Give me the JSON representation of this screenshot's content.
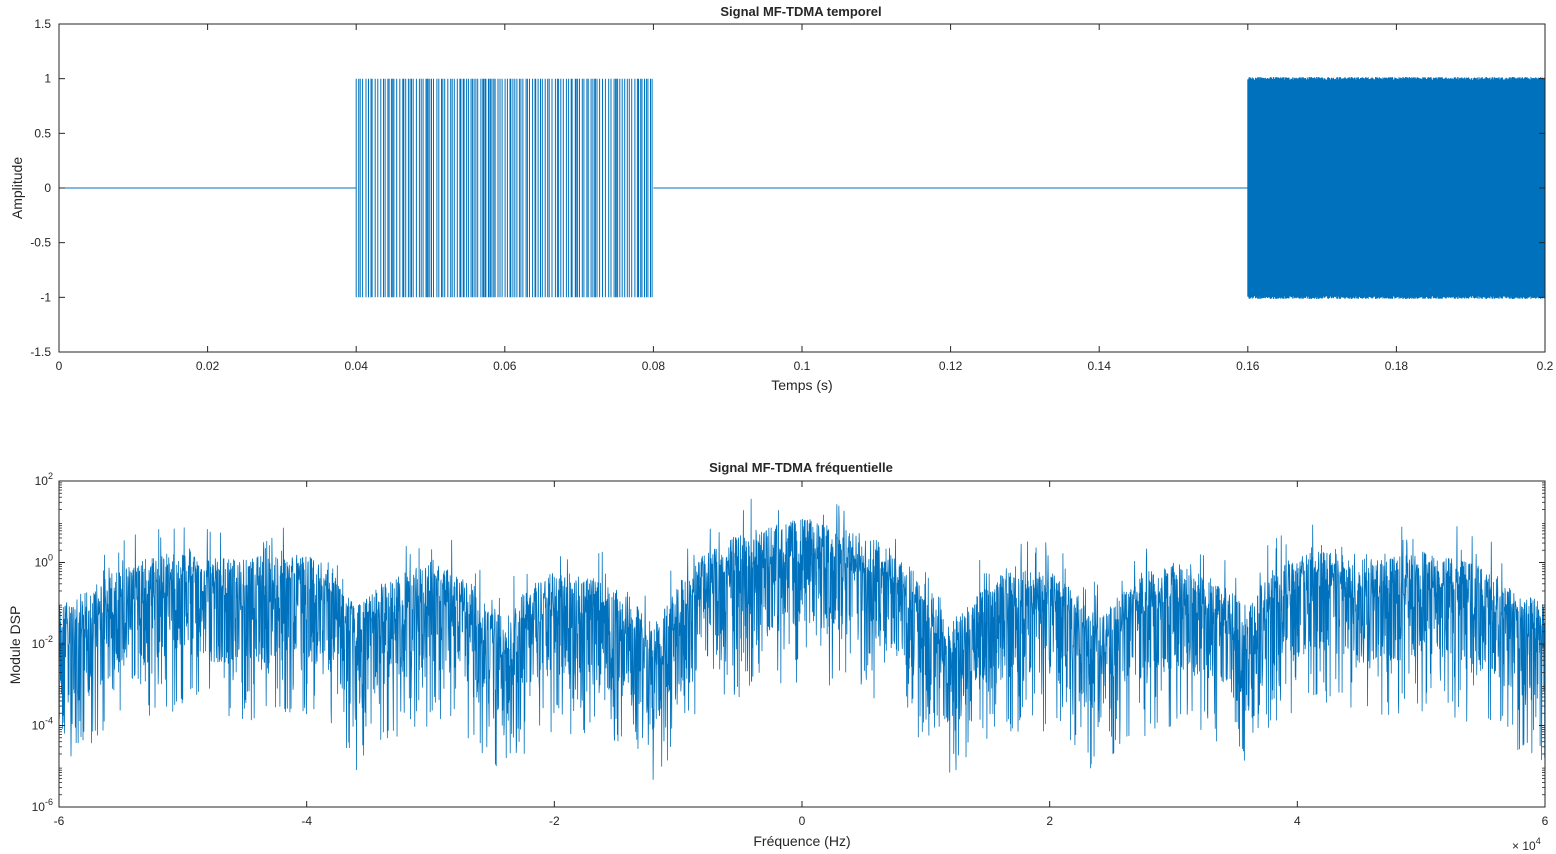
{
  "colors": {
    "series": "#0072BD",
    "axis": "#262626",
    "background": "#ffffff"
  },
  "chart_data": [
    {
      "type": "line",
      "title": "Signal MF-TDMA temporel",
      "xlabel": "Temps (s)",
      "ylabel": "Amplitude",
      "xlim": [
        0,
        0.2
      ],
      "ylim": [
        -1.5,
        1.5
      ],
      "x_ticks": [
        0,
        0.02,
        0.04,
        0.06,
        0.08,
        0.1,
        0.12,
        0.14,
        0.16,
        0.18,
        0.2
      ],
      "x_tick_labels": [
        "0",
        "0.02",
        "0.04",
        "0.06",
        "0.08",
        "0.1",
        "0.12",
        "0.14",
        "0.16",
        "0.18",
        "0.2"
      ],
      "y_ticks": [
        -1.5,
        -1,
        -0.5,
        0,
        0.5,
        1,
        1.5
      ],
      "y_tick_labels": [
        "-1.5",
        "-1",
        "-0.5",
        "0",
        "0.5",
        "1",
        "1.5"
      ],
      "grid": false,
      "series": [
        {
          "segments": [
            {
              "x_start": 0,
              "x_end": 0.04,
              "amplitude": 0
            },
            {
              "x_start": 0.04,
              "x_end": 0.08,
              "amplitude": 1
            },
            {
              "x_start": 0.08,
              "x_end": 0.16,
              "amplitude": 0
            },
            {
              "x_start": 0.16,
              "x_end": 0.2,
              "amplitude": 1
            }
          ]
        }
      ]
    },
    {
      "type": "line",
      "title": "Signal MF-TDMA fréquentielle",
      "xlabel": "Fréquence (Hz)",
      "ylabel": "Module DSP",
      "xlim": [
        -60000,
        60000
      ],
      "ylim": [
        1e-06,
        100
      ],
      "yscale": "log",
      "x_ticks": [
        -60000,
        -40000,
        -20000,
        0,
        20000,
        40000,
        60000
      ],
      "x_tick_labels": [
        "-6",
        "-4",
        "-2",
        "0",
        "2",
        "4",
        "6"
      ],
      "x_exponent_base": "× 10",
      "x_exponent_power": "4",
      "y_ticks": [
        1e-06,
        0.0001,
        0.01,
        1,
        100
      ],
      "y_tick_bases": [
        "10",
        "10",
        "10",
        "10",
        "10"
      ],
      "y_tick_powers": [
        "-6",
        "-4",
        "-2",
        "0",
        "2"
      ],
      "grid": false,
      "series": [
        {
          "envelope": {
            "frequency": [
              -60000,
              -58000,
              -55000,
              -52000,
              -50000,
              -48000,
              -45000,
              -42000,
              -40000,
              -38000,
              -36000,
              -34000,
              -32000,
              -30000,
              -28000,
              -26000,
              -24000,
              -22000,
              -20000,
              -18000,
              -16000,
              -14000,
              -12000,
              -10000,
              -8000,
              -6000,
              -4000,
              -2000,
              0,
              2000,
              4000,
              6000,
              8000,
              10000,
              12000,
              14000,
              16000,
              18000,
              20000,
              22000,
              24000,
              26000,
              28000,
              30000,
              32000,
              34000,
              36000,
              38000,
              40000,
              42000,
              45000,
              48000,
              50000,
              52000,
              55000,
              58000,
              60000
            ],
            "level": [
              0.01,
              0.02,
              0.08,
              0.15,
              0.2,
              0.15,
              0.12,
              0.2,
              0.15,
              0.08,
              0.008,
              0.03,
              0.06,
              0.1,
              0.06,
              0.02,
              0.004,
              0.03,
              0.06,
              0.06,
              0.03,
              0.015,
              0.003,
              0.03,
              0.15,
              0.4,
              0.6,
              0.9,
              1.2,
              0.9,
              0.6,
              0.4,
              0.15,
              0.03,
              0.003,
              0.015,
              0.05,
              0.08,
              0.06,
              0.02,
              0.004,
              0.02,
              0.06,
              0.1,
              0.06,
              0.03,
              0.008,
              0.08,
              0.15,
              0.2,
              0.12,
              0.15,
              0.2,
              0.15,
              0.08,
              0.02,
              0.01
            ]
          }
        }
      ]
    }
  ]
}
